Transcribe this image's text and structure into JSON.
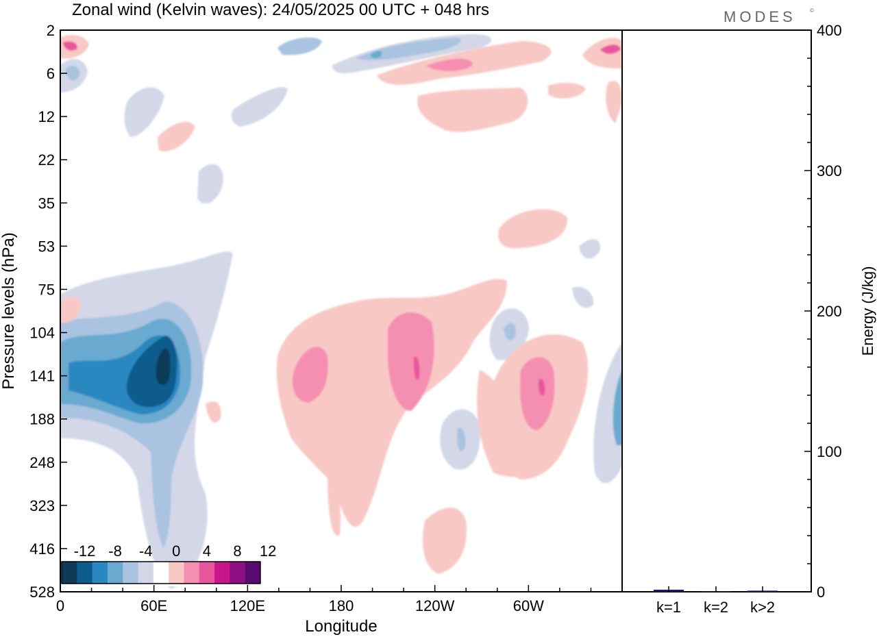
{
  "header": {
    "title": "Zonal wind (Kelvin waves):  24/05/2025  00 UTC  + 048 hrs",
    "brand": "MODES",
    "brand_mark": "©"
  },
  "chart_data": [
    {
      "type": "heatmap",
      "title": "Zonal wind (Kelvin waves):  24/05/2025  00 UTC  + 048 hrs",
      "xlabel": "Longitude",
      "ylabel": "Pressure levels (hPa)",
      "x_ticks": [
        "0",
        "60E",
        "120E",
        "180",
        "120W",
        "60W"
      ],
      "x_tick_values": [
        0,
        60,
        120,
        180,
        240,
        300
      ],
      "xlim": [
        0,
        360
      ],
      "y_ticks": [
        "2",
        "6",
        "12",
        "22",
        "35",
        "53",
        "75",
        "104",
        "141",
        "188",
        "248",
        "323",
        "416",
        "528"
      ],
      "colorbar": {
        "labels": [
          "-12",
          "-8",
          "-4",
          "0",
          "4",
          "8",
          "12"
        ],
        "levels": [
          -14,
          -12,
          -10,
          -8,
          -6,
          -4,
          -2,
          2,
          4,
          6,
          8,
          10,
          12,
          14
        ],
        "colors": [
          "#0f3a58",
          "#0d5c8c",
          "#2a88c0",
          "#6aa9d0",
          "#a9c3e0",
          "#d3d7e8",
          "#ffffff",
          "#f8c8c4",
          "#f48fb1",
          "#e8579e",
          "#c8168a",
          "#8e0f82",
          "#5a0a6e"
        ]
      },
      "features": [
        {
          "sign": "negative",
          "lon": 60,
          "level_hpa": 141,
          "min_value": -13
        },
        {
          "sign": "positive",
          "lon": 228,
          "level_hpa": 141,
          "max_value": 9
        },
        {
          "sign": "positive",
          "lon": 308,
          "level_hpa": 141,
          "max_value": 9
        },
        {
          "sign": "positive",
          "lon": 155,
          "level_hpa": 141,
          "max_value": 7
        },
        {
          "sign": "negative",
          "lon": 355,
          "level_hpa": 160,
          "min_value": -7
        },
        {
          "sign": "negative",
          "lon": 258,
          "level_hpa": 200,
          "min_value": -6
        },
        {
          "sign": "positive",
          "lon": 5,
          "level_hpa": 3,
          "max_value": 9
        },
        {
          "sign": "positive",
          "lon": 358,
          "level_hpa": 3,
          "max_value": 9
        },
        {
          "sign": "negative",
          "lon": 238,
          "level_hpa": 3,
          "min_value": -7
        }
      ]
    },
    {
      "type": "bar",
      "ylabel": "Energy (J/kg)",
      "categories": [
        "k=1",
        "k=2",
        "k>2"
      ],
      "values": [
        1.5,
        0.4,
        0.8
      ],
      "ylim": [
        0,
        400
      ],
      "y_ticks": [
        "0",
        "100",
        "200",
        "300",
        "400"
      ],
      "bar_color": "#1a1a5e"
    }
  ]
}
